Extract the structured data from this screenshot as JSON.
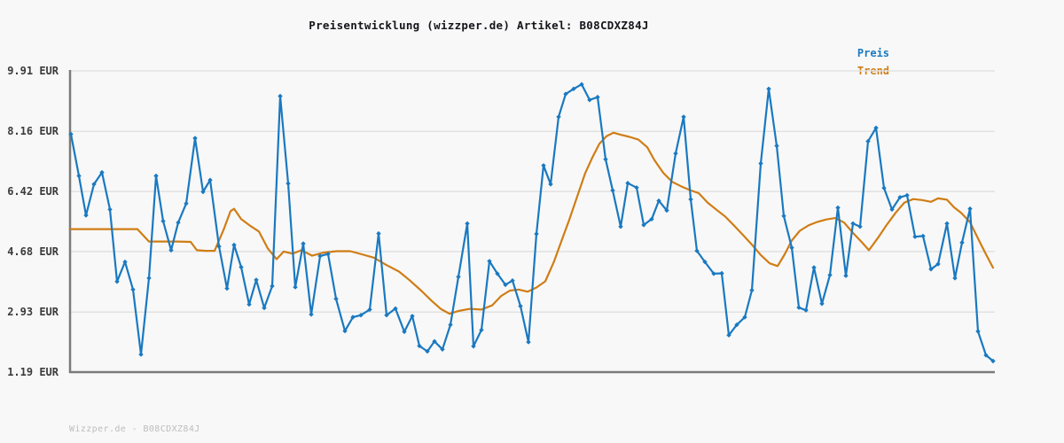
{
  "header": {
    "title": "Preisentwicklung (wizzper.de) Artikel: B08CDXZ84J"
  },
  "legend": {
    "preis": {
      "label": "Preis",
      "color": "#1a79c0"
    },
    "trend": {
      "label": "Trend",
      "color": "#d07d15"
    }
  },
  "footer": {
    "text": "Wizzper.de - B08CDXZ84J"
  },
  "chart_data": {
    "type": "line",
    "title": "Preisentwicklung (wizzper.de) Artikel: B08CDXZ84J",
    "xlabel": "",
    "ylabel": "EUR",
    "ylim": [
      1.19,
      9.91
    ],
    "grid": true,
    "grid_color": "#e2e2e2",
    "axis_color": "#7b7b7b",
    "legend_position": "top-right",
    "yticks": [
      {
        "label": "9.91 EUR",
        "value": 9.91
      },
      {
        "label": "8.16 EUR",
        "value": 8.16
      },
      {
        "label": "6.42 EUR",
        "value": 6.42
      },
      {
        "label": "4.68 EUR",
        "value": 4.68
      },
      {
        "label": "2.93 EUR",
        "value": 2.93
      },
      {
        "label": "1.19 EUR",
        "value": 1.19
      }
    ],
    "series": [
      {
        "name": "Preis",
        "color": "#1a79c0",
        "marker": "diamond",
        "points": [
          [
            80,
            8.08
          ],
          [
            89,
            6.87
          ],
          [
            97,
            5.73
          ],
          [
            106,
            6.63
          ],
          [
            115,
            6.97
          ],
          [
            124,
            5.9
          ],
          [
            132,
            3.81
          ],
          [
            141,
            4.38
          ],
          [
            150,
            3.58
          ],
          [
            159,
            1.7
          ],
          [
            168,
            3.91
          ],
          [
            176,
            6.87
          ],
          [
            184,
            5.56
          ],
          [
            193,
            4.72
          ],
          [
            201,
            5.52
          ],
          [
            210,
            6.07
          ],
          [
            220,
            7.96
          ],
          [
            229,
            6.41
          ],
          [
            237,
            6.75
          ],
          [
            247,
            4.83
          ],
          [
            256,
            3.61
          ],
          [
            264,
            4.87
          ],
          [
            272,
            4.23
          ],
          [
            281,
            3.15
          ],
          [
            289,
            3.86
          ],
          [
            298,
            3.05
          ],
          [
            307,
            3.68
          ],
          [
            316,
            9.18
          ],
          [
            325,
            6.65
          ],
          [
            333,
            3.65
          ],
          [
            342,
            4.91
          ],
          [
            351,
            2.86
          ],
          [
            361,
            4.55
          ],
          [
            370,
            4.61
          ],
          [
            379,
            3.31
          ],
          [
            389,
            2.38
          ],
          [
            398,
            2.78
          ],
          [
            407,
            2.84
          ],
          [
            417,
            3.0
          ],
          [
            427,
            5.2
          ],
          [
            436,
            2.84
          ],
          [
            446,
            3.03
          ],
          [
            456,
            2.36
          ],
          [
            465,
            2.81
          ],
          [
            473,
            1.95
          ],
          [
            482,
            1.79
          ],
          [
            490,
            2.08
          ],
          [
            499,
            1.85
          ],
          [
            508,
            2.56
          ],
          [
            517,
            3.95
          ],
          [
            527,
            5.49
          ],
          [
            534,
            1.94
          ],
          [
            543,
            2.41
          ],
          [
            552,
            4.4
          ],
          [
            561,
            4.04
          ],
          [
            570,
            3.72
          ],
          [
            578,
            3.84
          ],
          [
            587,
            3.1
          ],
          [
            596,
            2.06
          ],
          [
            605,
            5.19
          ],
          [
            613,
            7.17
          ],
          [
            621,
            6.63
          ],
          [
            630,
            8.58
          ],
          [
            638,
            9.24
          ],
          [
            647,
            9.39
          ],
          [
            656,
            9.52
          ],
          [
            665,
            9.07
          ],
          [
            674,
            9.15
          ],
          [
            683,
            7.35
          ],
          [
            691,
            6.45
          ],
          [
            700,
            5.4
          ],
          [
            708,
            6.66
          ],
          [
            718,
            6.53
          ],
          [
            726,
            5.45
          ],
          [
            735,
            5.62
          ],
          [
            743,
            6.15
          ],
          [
            752,
            5.87
          ],
          [
            762,
            7.52
          ],
          [
            771,
            8.58
          ],
          [
            779,
            6.19
          ],
          [
            786,
            4.7
          ],
          [
            795,
            4.38
          ],
          [
            805,
            4.04
          ],
          [
            814,
            4.05
          ],
          [
            822,
            2.26
          ],
          [
            831,
            2.56
          ],
          [
            840,
            2.78
          ],
          [
            848,
            3.56
          ],
          [
            858,
            7.23
          ],
          [
            867,
            9.39
          ],
          [
            876,
            7.74
          ],
          [
            884,
            5.71
          ],
          [
            893,
            4.79
          ],
          [
            901,
            3.06
          ],
          [
            909,
            2.98
          ],
          [
            918,
            4.22
          ],
          [
            927,
            3.17
          ],
          [
            936,
            4.0
          ],
          [
            945,
            5.95
          ],
          [
            954,
            3.98
          ],
          [
            962,
            5.49
          ],
          [
            970,
            5.4
          ],
          [
            979,
            7.87
          ],
          [
            988,
            8.26
          ],
          [
            997,
            6.52
          ],
          [
            1006,
            5.9
          ],
          [
            1015,
            6.25
          ],
          [
            1023,
            6.31
          ],
          [
            1032,
            5.11
          ],
          [
            1041,
            5.13
          ],
          [
            1050,
            4.17
          ],
          [
            1058,
            4.32
          ],
          [
            1068,
            5.49
          ],
          [
            1077,
            3.91
          ],
          [
            1085,
            4.94
          ],
          [
            1094,
            5.92
          ],
          [
            1103,
            2.37
          ],
          [
            1112,
            1.68
          ],
          [
            1120,
            1.51
          ]
        ]
      },
      {
        "name": "Trend",
        "color": "#d07d15",
        "marker": null,
        "points": [
          [
            80,
            5.33
          ],
          [
            100,
            5.33
          ],
          [
            120,
            5.33
          ],
          [
            140,
            5.33
          ],
          [
            155,
            5.33
          ],
          [
            168,
            4.97
          ],
          [
            185,
            4.97
          ],
          [
            200,
            4.97
          ],
          [
            215,
            4.96
          ],
          [
            222,
            4.72
          ],
          [
            232,
            4.7
          ],
          [
            242,
            4.7
          ],
          [
            252,
            5.3
          ],
          [
            260,
            5.85
          ],
          [
            264,
            5.92
          ],
          [
            272,
            5.62
          ],
          [
            282,
            5.43
          ],
          [
            292,
            5.26
          ],
          [
            302,
            4.77
          ],
          [
            312,
            4.46
          ],
          [
            320,
            4.68
          ],
          [
            330,
            4.62
          ],
          [
            340,
            4.72
          ],
          [
            352,
            4.56
          ],
          [
            365,
            4.65
          ],
          [
            380,
            4.69
          ],
          [
            395,
            4.69
          ],
          [
            408,
            4.6
          ],
          [
            422,
            4.5
          ],
          [
            435,
            4.3
          ],
          [
            450,
            4.1
          ],
          [
            462,
            3.85
          ],
          [
            475,
            3.55
          ],
          [
            487,
            3.25
          ],
          [
            497,
            3.02
          ],
          [
            507,
            2.88
          ],
          [
            517,
            2.96
          ],
          [
            530,
            3.02
          ],
          [
            543,
            3.0
          ],
          [
            555,
            3.12
          ],
          [
            565,
            3.39
          ],
          [
            575,
            3.55
          ],
          [
            585,
            3.58
          ],
          [
            595,
            3.52
          ],
          [
            605,
            3.64
          ],
          [
            615,
            3.82
          ],
          [
            625,
            4.4
          ],
          [
            634,
            5.04
          ],
          [
            642,
            5.6
          ],
          [
            650,
            6.2
          ],
          [
            660,
            6.95
          ],
          [
            668,
            7.4
          ],
          [
            676,
            7.8
          ],
          [
            684,
            8.02
          ],
          [
            692,
            8.12
          ],
          [
            700,
            8.06
          ],
          [
            710,
            8.0
          ],
          [
            720,
            7.92
          ],
          [
            730,
            7.7
          ],
          [
            738,
            7.33
          ],
          [
            748,
            6.96
          ],
          [
            758,
            6.7
          ],
          [
            768,
            6.57
          ],
          [
            778,
            6.46
          ],
          [
            788,
            6.37
          ],
          [
            798,
            6.1
          ],
          [
            808,
            5.89
          ],
          [
            818,
            5.69
          ],
          [
            828,
            5.43
          ],
          [
            838,
            5.16
          ],
          [
            848,
            4.88
          ],
          [
            858,
            4.58
          ],
          [
            868,
            4.34
          ],
          [
            877,
            4.26
          ],
          [
            885,
            4.6
          ],
          [
            893,
            5.0
          ],
          [
            902,
            5.28
          ],
          [
            912,
            5.44
          ],
          [
            922,
            5.54
          ],
          [
            932,
            5.61
          ],
          [
            942,
            5.65
          ],
          [
            952,
            5.52
          ],
          [
            962,
            5.22
          ],
          [
            972,
            4.95
          ],
          [
            980,
            4.72
          ],
          [
            990,
            5.07
          ],
          [
            1000,
            5.45
          ],
          [
            1010,
            5.8
          ],
          [
            1020,
            6.1
          ],
          [
            1030,
            6.2
          ],
          [
            1040,
            6.17
          ],
          [
            1050,
            6.12
          ],
          [
            1058,
            6.22
          ],
          [
            1068,
            6.18
          ],
          [
            1076,
            5.96
          ],
          [
            1084,
            5.8
          ],
          [
            1094,
            5.53
          ],
          [
            1103,
            5.06
          ],
          [
            1112,
            4.6
          ],
          [
            1120,
            4.21
          ]
        ]
      }
    ]
  }
}
